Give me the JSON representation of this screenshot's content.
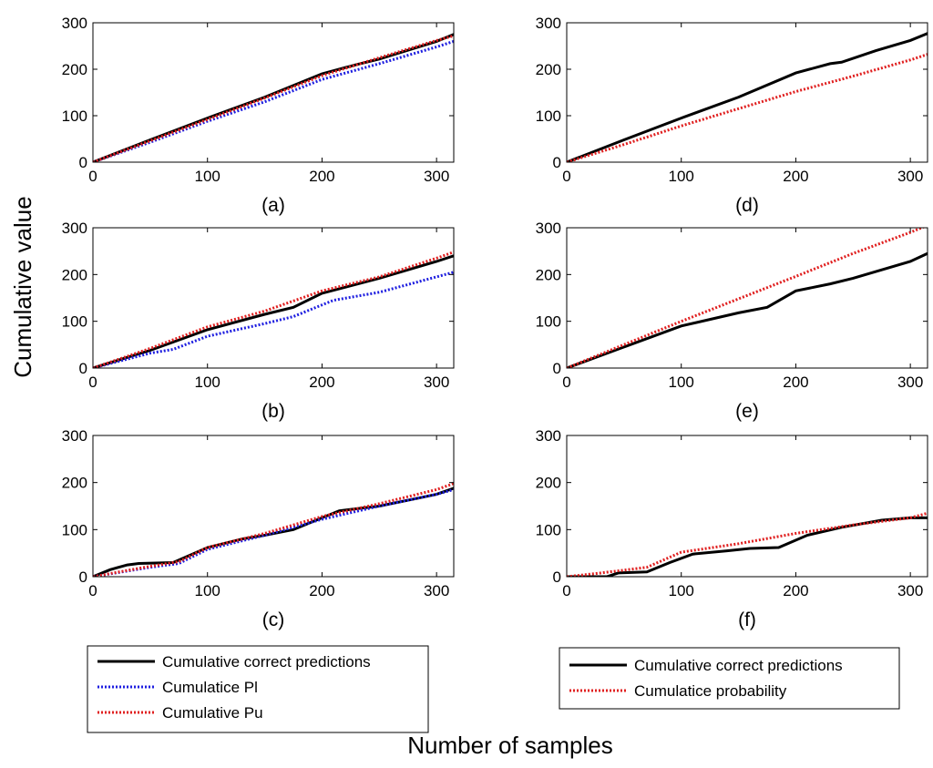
{
  "figure": {
    "ylabel": "Cumulative value",
    "xlabel": "Number of samples",
    "colors": {
      "correct": "#000000",
      "pl": "#1f1fe0",
      "pu": "#e01f1f",
      "prob": "#e01f1f"
    }
  },
  "legends": {
    "left": [
      "Cumulative correct predictions",
      "Cumulatice Pl",
      "Cumulative Pu"
    ],
    "right": [
      "Cumulative correct predictions",
      "Cumulatice probability"
    ]
  },
  "chart_data": [
    {
      "type": "line",
      "panel_label": "(a)",
      "xlim": [
        0,
        315
      ],
      "ylim": [
        0,
        300
      ],
      "xticks": [
        0,
        100,
        200,
        300
      ],
      "yticks": [
        0,
        100,
        200,
        300
      ],
      "series": [
        {
          "name": "Cumulative correct predictions",
          "color": "#000000",
          "style": "solid",
          "x": [
            0,
            50,
            100,
            150,
            200,
            230,
            250,
            300,
            315
          ],
          "y": [
            0,
            48,
            95,
            140,
            190,
            210,
            222,
            260,
            275
          ]
        },
        {
          "name": "Cumulatice Pl",
          "color": "#1f1fe0",
          "style": "dotted",
          "x": [
            0,
            50,
            100,
            150,
            200,
            250,
            300,
            315
          ],
          "y": [
            0,
            43,
            88,
            130,
            178,
            212,
            248,
            260
          ]
        },
        {
          "name": "Cumulative Pu",
          "color": "#e01f1f",
          "style": "dotted",
          "x": [
            0,
            50,
            100,
            150,
            200,
            250,
            300,
            315
          ],
          "y": [
            0,
            46,
            92,
            138,
            186,
            225,
            262,
            272
          ]
        }
      ]
    },
    {
      "type": "line",
      "panel_label": "(d)",
      "xlim": [
        0,
        315
      ],
      "ylim": [
        0,
        300
      ],
      "xticks": [
        0,
        100,
        200,
        300
      ],
      "yticks": [
        0,
        100,
        200,
        300
      ],
      "series": [
        {
          "name": "Cumulative correct predictions",
          "color": "#000000",
          "style": "solid",
          "x": [
            0,
            50,
            100,
            150,
            200,
            230,
            240,
            270,
            300,
            315
          ],
          "y": [
            0,
            48,
            95,
            140,
            192,
            212,
            215,
            240,
            262,
            277
          ]
        },
        {
          "name": "Cumulatice probability",
          "color": "#e01f1f",
          "style": "dotted",
          "x": [
            0,
            50,
            100,
            150,
            200,
            250,
            300,
            315
          ],
          "y": [
            0,
            38,
            78,
            115,
            152,
            185,
            220,
            232
          ]
        }
      ]
    },
    {
      "type": "line",
      "panel_label": "(b)",
      "xlim": [
        0,
        315
      ],
      "ylim": [
        0,
        300
      ],
      "xticks": [
        0,
        100,
        200,
        300
      ],
      "yticks": [
        0,
        100,
        200,
        300
      ],
      "series": [
        {
          "name": "Cumulative correct predictions",
          "color": "#000000",
          "style": "solid",
          "x": [
            0,
            50,
            100,
            150,
            175,
            200,
            250,
            300,
            315
          ],
          "y": [
            0,
            38,
            82,
            115,
            130,
            160,
            192,
            228,
            240
          ]
        },
        {
          "name": "Cumulatice Pl",
          "color": "#1f1fe0",
          "style": "dotted",
          "x": [
            0,
            50,
            70,
            100,
            150,
            175,
            210,
            250,
            300,
            315
          ],
          "y": [
            0,
            32,
            40,
            68,
            95,
            110,
            145,
            162,
            195,
            205
          ]
        },
        {
          "name": "Cumulative Pu",
          "color": "#e01f1f",
          "style": "dotted",
          "x": [
            0,
            50,
            100,
            150,
            200,
            250,
            300,
            315
          ],
          "y": [
            0,
            42,
            88,
            122,
            165,
            195,
            235,
            248
          ]
        }
      ]
    },
    {
      "type": "line",
      "panel_label": "(e)",
      "xlim": [
        0,
        315
      ],
      "ylim": [
        0,
        300
      ],
      "xticks": [
        0,
        100,
        200,
        300
      ],
      "yticks": [
        0,
        100,
        200,
        300
      ],
      "series": [
        {
          "name": "Cumulative correct predictions",
          "color": "#000000",
          "style": "solid",
          "x": [
            0,
            50,
            100,
            150,
            175,
            200,
            230,
            250,
            300,
            315
          ],
          "y": [
            0,
            45,
            90,
            118,
            130,
            165,
            180,
            192,
            228,
            245
          ]
        },
        {
          "name": "Cumulatice probability",
          "color": "#e01f1f",
          "style": "dotted",
          "x": [
            0,
            50,
            100,
            150,
            200,
            250,
            300,
            315
          ],
          "y": [
            0,
            50,
            100,
            148,
            196,
            245,
            290,
            305
          ]
        }
      ]
    },
    {
      "type": "line",
      "panel_label": "(c)",
      "xlim": [
        0,
        315
      ],
      "ylim": [
        0,
        300
      ],
      "xticks": [
        0,
        100,
        200,
        300
      ],
      "yticks": [
        0,
        100,
        200,
        300
      ],
      "series": [
        {
          "name": "Cumulative correct predictions",
          "color": "#000000",
          "style": "solid",
          "x": [
            0,
            15,
            30,
            40,
            70,
            100,
            130,
            150,
            175,
            200,
            215,
            250,
            280,
            300,
            315
          ],
          "y": [
            0,
            15,
            25,
            28,
            30,
            62,
            80,
            88,
            100,
            125,
            140,
            150,
            165,
            175,
            188
          ]
        },
        {
          "name": "Cumulatice Pl",
          "color": "#1f1fe0",
          "style": "dotted",
          "x": [
            0,
            50,
            75,
            100,
            150,
            200,
            250,
            300,
            315
          ],
          "y": [
            0,
            20,
            28,
            58,
            88,
            122,
            150,
            175,
            185
          ]
        },
        {
          "name": "Cumulative Pu",
          "color": "#e01f1f",
          "style": "dotted",
          "x": [
            0,
            50,
            75,
            100,
            150,
            200,
            250,
            300,
            315
          ],
          "y": [
            0,
            22,
            32,
            62,
            92,
            128,
            155,
            185,
            198
          ]
        }
      ]
    },
    {
      "type": "line",
      "panel_label": "(f)",
      "xlim": [
        0,
        315
      ],
      "ylim": [
        0,
        300
      ],
      "xticks": [
        0,
        100,
        200,
        300
      ],
      "yticks": [
        0,
        100,
        200,
        300
      ],
      "series": [
        {
          "name": "Cumulative correct predictions",
          "color": "#000000",
          "style": "solid",
          "x": [
            0,
            35,
            45,
            70,
            90,
            110,
            140,
            160,
            185,
            210,
            240,
            275,
            300,
            315
          ],
          "y": [
            0,
            0,
            8,
            10,
            30,
            48,
            55,
            60,
            62,
            88,
            105,
            120,
            125,
            125
          ]
        },
        {
          "name": "Cumulatice probability",
          "color": "#e01f1f",
          "style": "dotted",
          "x": [
            0,
            30,
            70,
            100,
            150,
            200,
            250,
            300,
            315
          ],
          "y": [
            0,
            8,
            20,
            52,
            70,
            92,
            110,
            125,
            135
          ]
        }
      ]
    }
  ]
}
